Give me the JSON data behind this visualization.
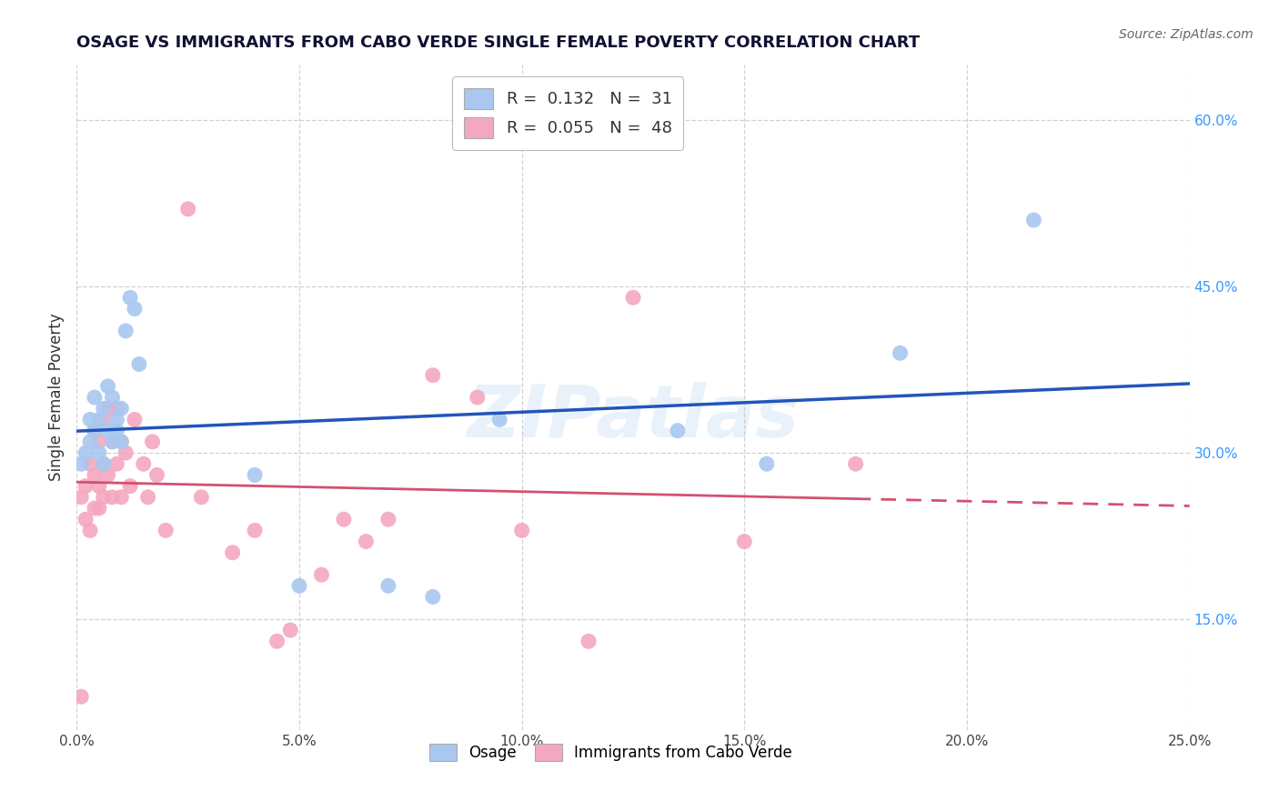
{
  "title": "OSAGE VS IMMIGRANTS FROM CABO VERDE SINGLE FEMALE POVERTY CORRELATION CHART",
  "source": "Source: ZipAtlas.com",
  "ylabel": "Single Female Poverty",
  "xlim": [
    0.0,
    0.25
  ],
  "ylim": [
    0.05,
    0.65
  ],
  "xticks": [
    0.0,
    0.05,
    0.1,
    0.15,
    0.2,
    0.25
  ],
  "xtick_labels": [
    "0.0%",
    "5.0%",
    "10.0%",
    "15.0%",
    "20.0%",
    "25.0%"
  ],
  "yticks": [
    0.15,
    0.3,
    0.45,
    0.6
  ],
  "ytick_labels": [
    "15.0%",
    "30.0%",
    "45.0%",
    "60.0%"
  ],
  "grid_color": "#cccccc",
  "background_color": "#ffffff",
  "watermark": "ZIPatlas",
  "legend_R1": "R =  0.132   N =  31",
  "legend_R2": "R =  0.055   N =  48",
  "blue_color": "#a8c8f0",
  "pink_color": "#f4a8c0",
  "blue_line_color": "#2255bb",
  "pink_line_color": "#d45070",
  "ytick_color": "#3399ff",
  "osage_x": [
    0.001,
    0.002,
    0.003,
    0.003,
    0.004,
    0.004,
    0.005,
    0.005,
    0.006,
    0.006,
    0.007,
    0.007,
    0.008,
    0.008,
    0.009,
    0.009,
    0.01,
    0.01,
    0.011,
    0.012,
    0.013,
    0.014,
    0.04,
    0.05,
    0.07,
    0.08,
    0.095,
    0.135,
    0.155,
    0.185,
    0.215
  ],
  "osage_y": [
    0.29,
    0.3,
    0.31,
    0.33,
    0.32,
    0.35,
    0.3,
    0.33,
    0.29,
    0.34,
    0.32,
    0.36,
    0.31,
    0.35,
    0.32,
    0.33,
    0.31,
    0.34,
    0.41,
    0.44,
    0.43,
    0.38,
    0.28,
    0.18,
    0.18,
    0.17,
    0.33,
    0.32,
    0.29,
    0.39,
    0.51
  ],
  "cabo_x": [
    0.001,
    0.001,
    0.002,
    0.002,
    0.003,
    0.003,
    0.004,
    0.004,
    0.004,
    0.005,
    0.005,
    0.005,
    0.006,
    0.006,
    0.006,
    0.007,
    0.007,
    0.008,
    0.008,
    0.009,
    0.009,
    0.01,
    0.01,
    0.011,
    0.012,
    0.013,
    0.015,
    0.016,
    0.017,
    0.018,
    0.02,
    0.025,
    0.028,
    0.035,
    0.04,
    0.045,
    0.048,
    0.055,
    0.06,
    0.065,
    0.07,
    0.08,
    0.09,
    0.1,
    0.115,
    0.125,
    0.15,
    0.175
  ],
  "cabo_y": [
    0.26,
    0.08,
    0.24,
    0.27,
    0.23,
    0.29,
    0.25,
    0.28,
    0.32,
    0.25,
    0.27,
    0.31,
    0.26,
    0.29,
    0.33,
    0.28,
    0.34,
    0.26,
    0.31,
    0.29,
    0.34,
    0.26,
    0.31,
    0.3,
    0.27,
    0.33,
    0.29,
    0.26,
    0.31,
    0.28,
    0.23,
    0.52,
    0.26,
    0.21,
    0.23,
    0.13,
    0.14,
    0.19,
    0.24,
    0.22,
    0.24,
    0.37,
    0.35,
    0.23,
    0.13,
    0.44,
    0.22,
    0.29
  ],
  "legend_label1": "Osage",
  "legend_label2": "Immigrants from Cabo Verde"
}
